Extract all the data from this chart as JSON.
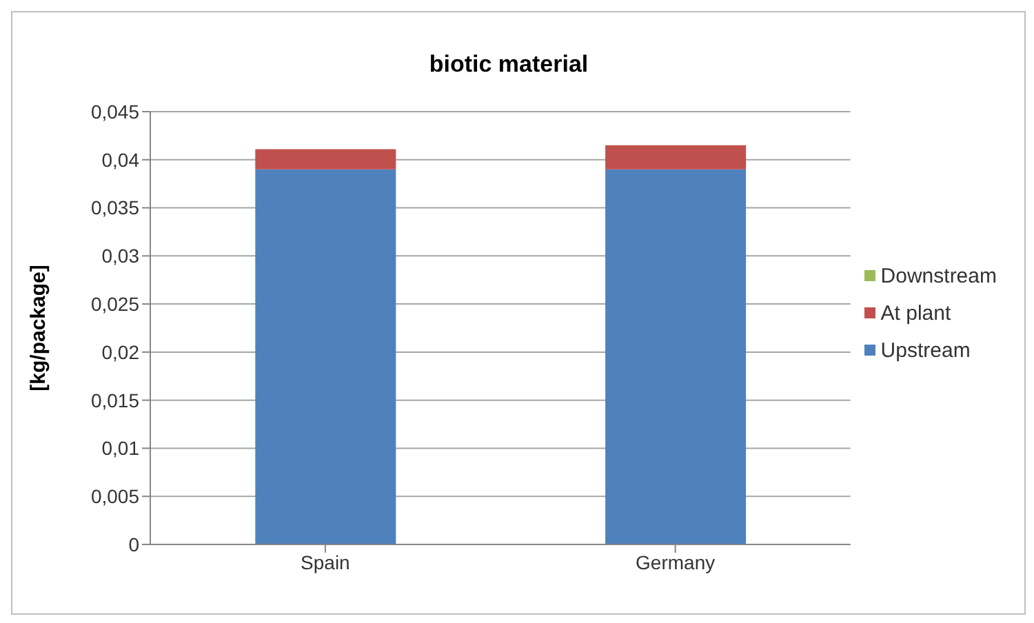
{
  "chart_data": {
    "type": "bar",
    "title": "biotic material",
    "ylabel": "[kg/package]",
    "categories": [
      "Spain",
      "Germany"
    ],
    "stacked": true,
    "series": [
      {
        "name": "Upstream",
        "color": "#4f81bd",
        "values": [
          0.039,
          0.039
        ]
      },
      {
        "name": "At plant",
        "color": "#c0504d",
        "values": [
          0.0021,
          0.0025
        ]
      },
      {
        "name": "Downstream",
        "color": "#9bbb59",
        "values": [
          0,
          0
        ]
      }
    ],
    "ylim": [
      0,
      0.045
    ],
    "yticks": [
      0,
      {
        "value": 0.005,
        "label": "0,005"
      },
      {
        "value": 0.01,
        "label": "0,01"
      },
      {
        "value": 0.015,
        "label": "0,015"
      },
      {
        "value": 0.02,
        "label": "0,02"
      },
      {
        "value": 0.025,
        "label": "0,025"
      },
      {
        "value": 0.03,
        "label": "0,03"
      },
      {
        "value": 0.035,
        "label": "0,035"
      },
      {
        "value": 0.04,
        "label": "0,04"
      },
      {
        "value": 0.045,
        "label": "0,045"
      }
    ],
    "grid": "y",
    "legend": "right"
  }
}
